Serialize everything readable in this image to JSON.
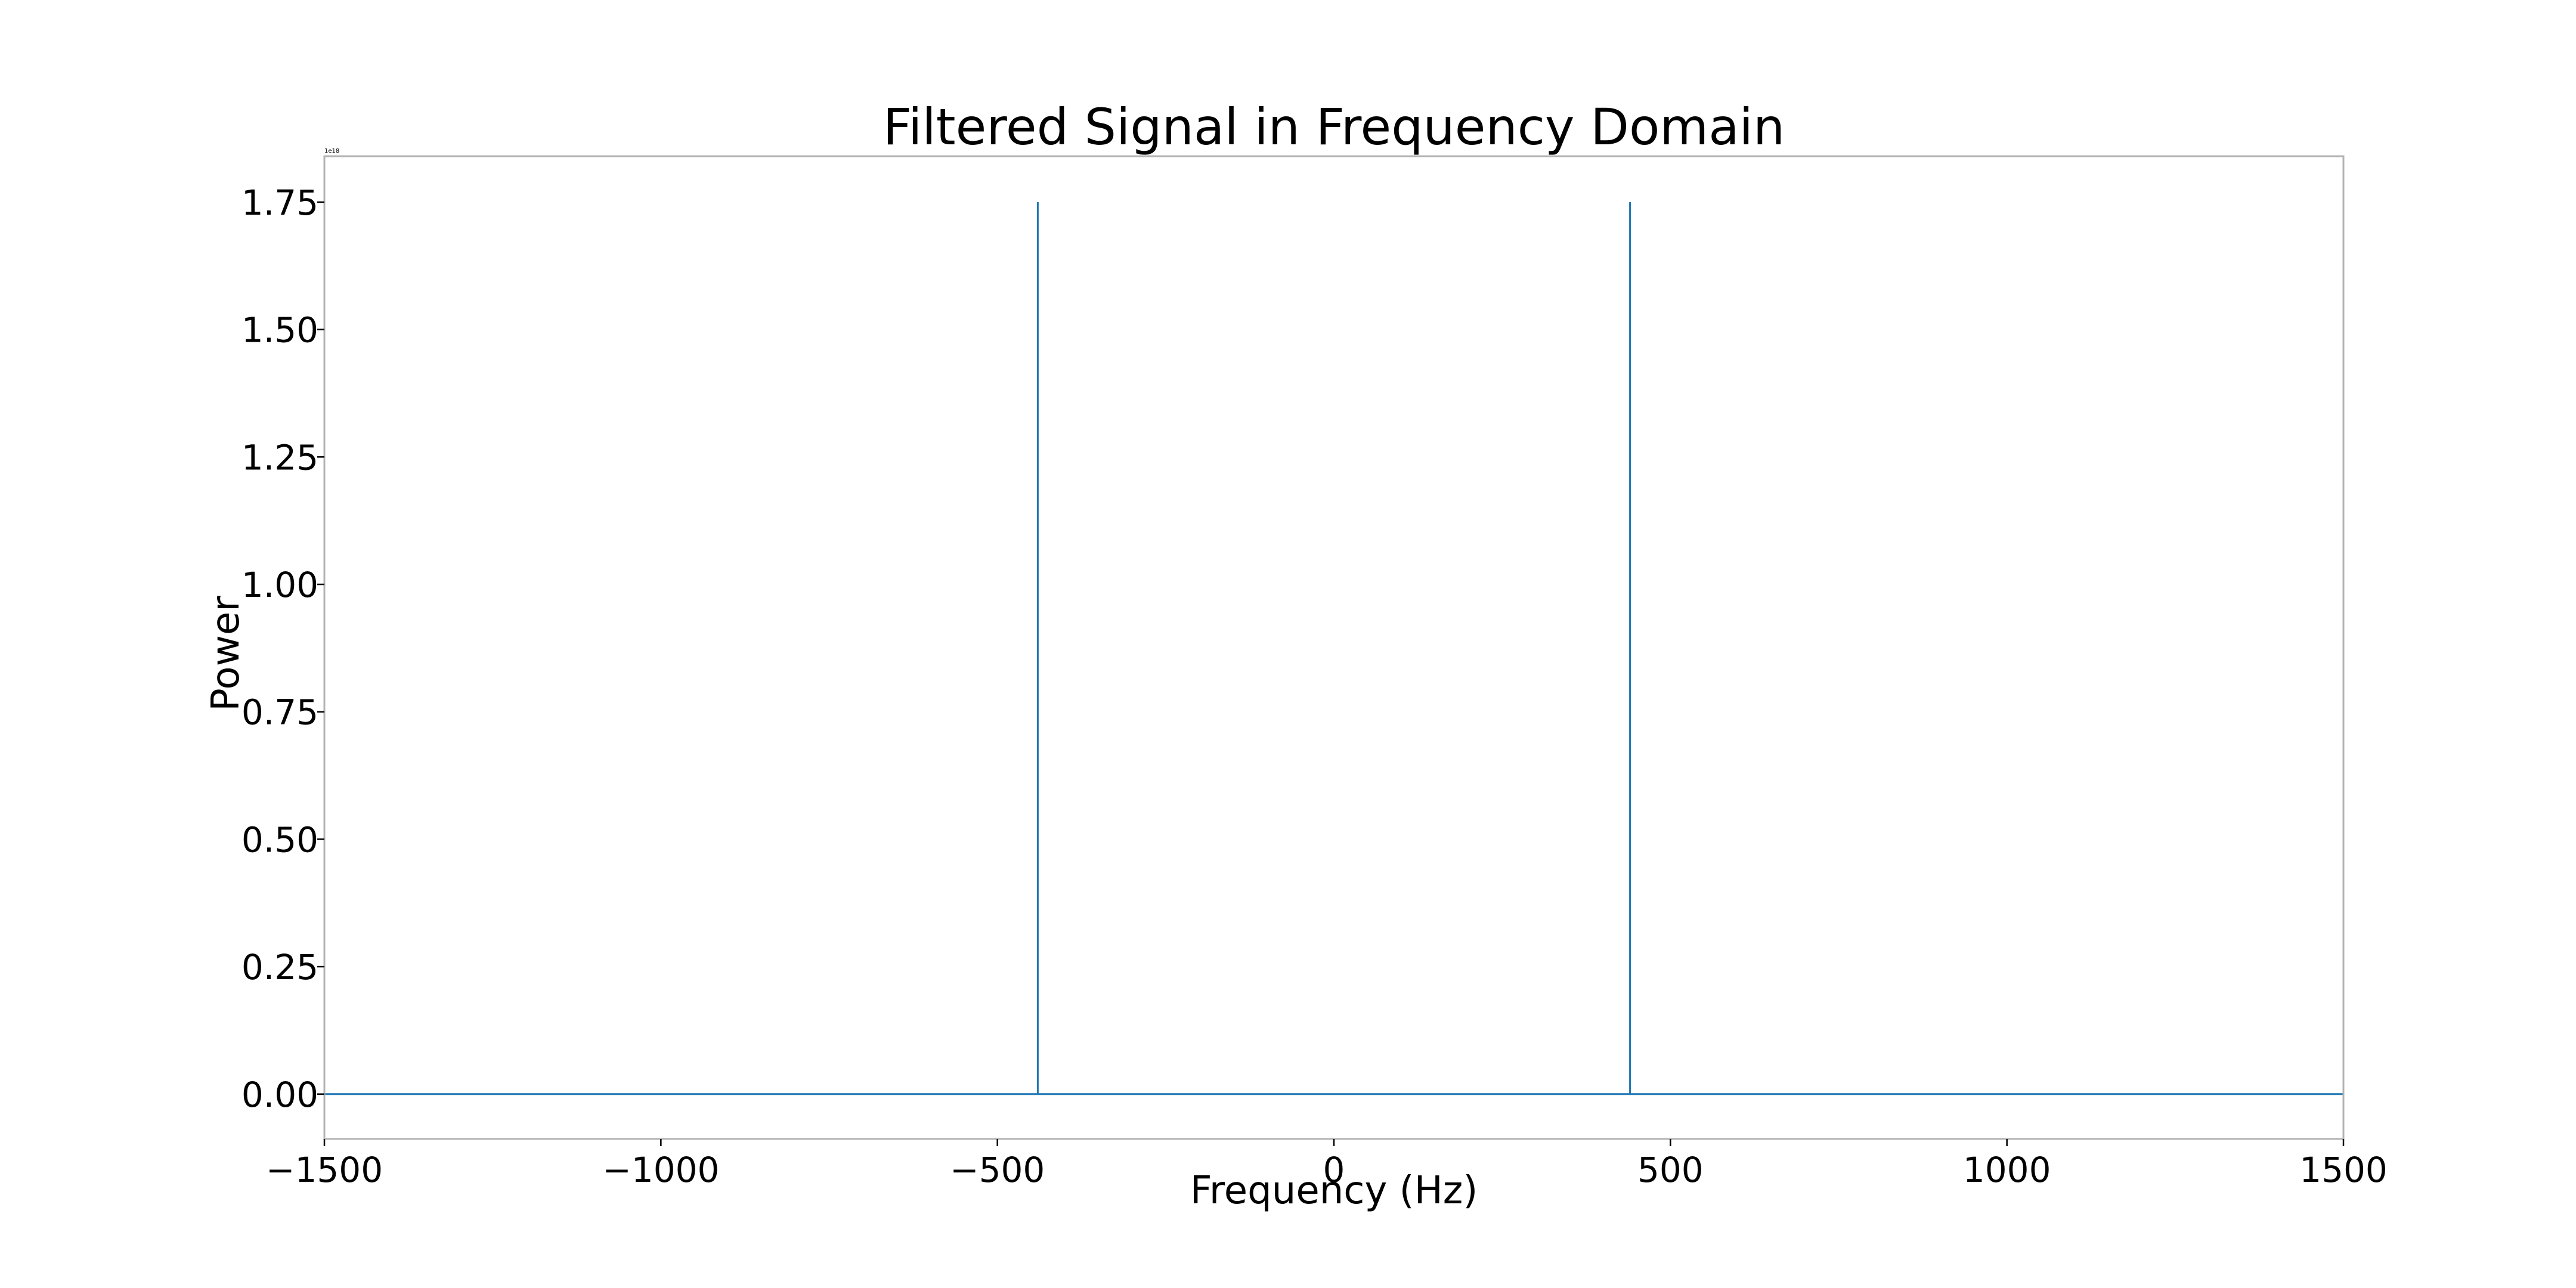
{
  "chart_data": {
    "type": "line",
    "title": "Filtered Signal in Frequency Domain",
    "xlabel": "Frequency (Hz)",
    "ylabel": "Power",
    "y_offset_text": "1e18",
    "xlim": [
      -1500,
      1500
    ],
    "ylim": [
      -0.088,
      1.84
    ],
    "xticks": [
      -1500,
      -1000,
      -500,
      0,
      500,
      1000,
      1500
    ],
    "xtick_labels": [
      "−1500",
      "−1000",
      "−500",
      "0",
      "500",
      "1000",
      "1500"
    ],
    "yticks": [
      0,
      0.25,
      0.5,
      0.75,
      1.0,
      1.25,
      1.5,
      1.75
    ],
    "ytick_labels": [
      "0.00",
      "0.25",
      "0.50",
      "0.75",
      "1.00",
      "1.25",
      "1.50",
      "1.75"
    ],
    "grid": false,
    "legend": null,
    "series": [
      {
        "color": "#1f77b4",
        "x": [
          -1500,
          -440,
          -440,
          -440,
          440,
          440,
          440,
          1500
        ],
        "y": [
          0,
          0,
          1.75,
          0,
          0,
          1.75,
          0,
          0
        ]
      }
    ]
  }
}
